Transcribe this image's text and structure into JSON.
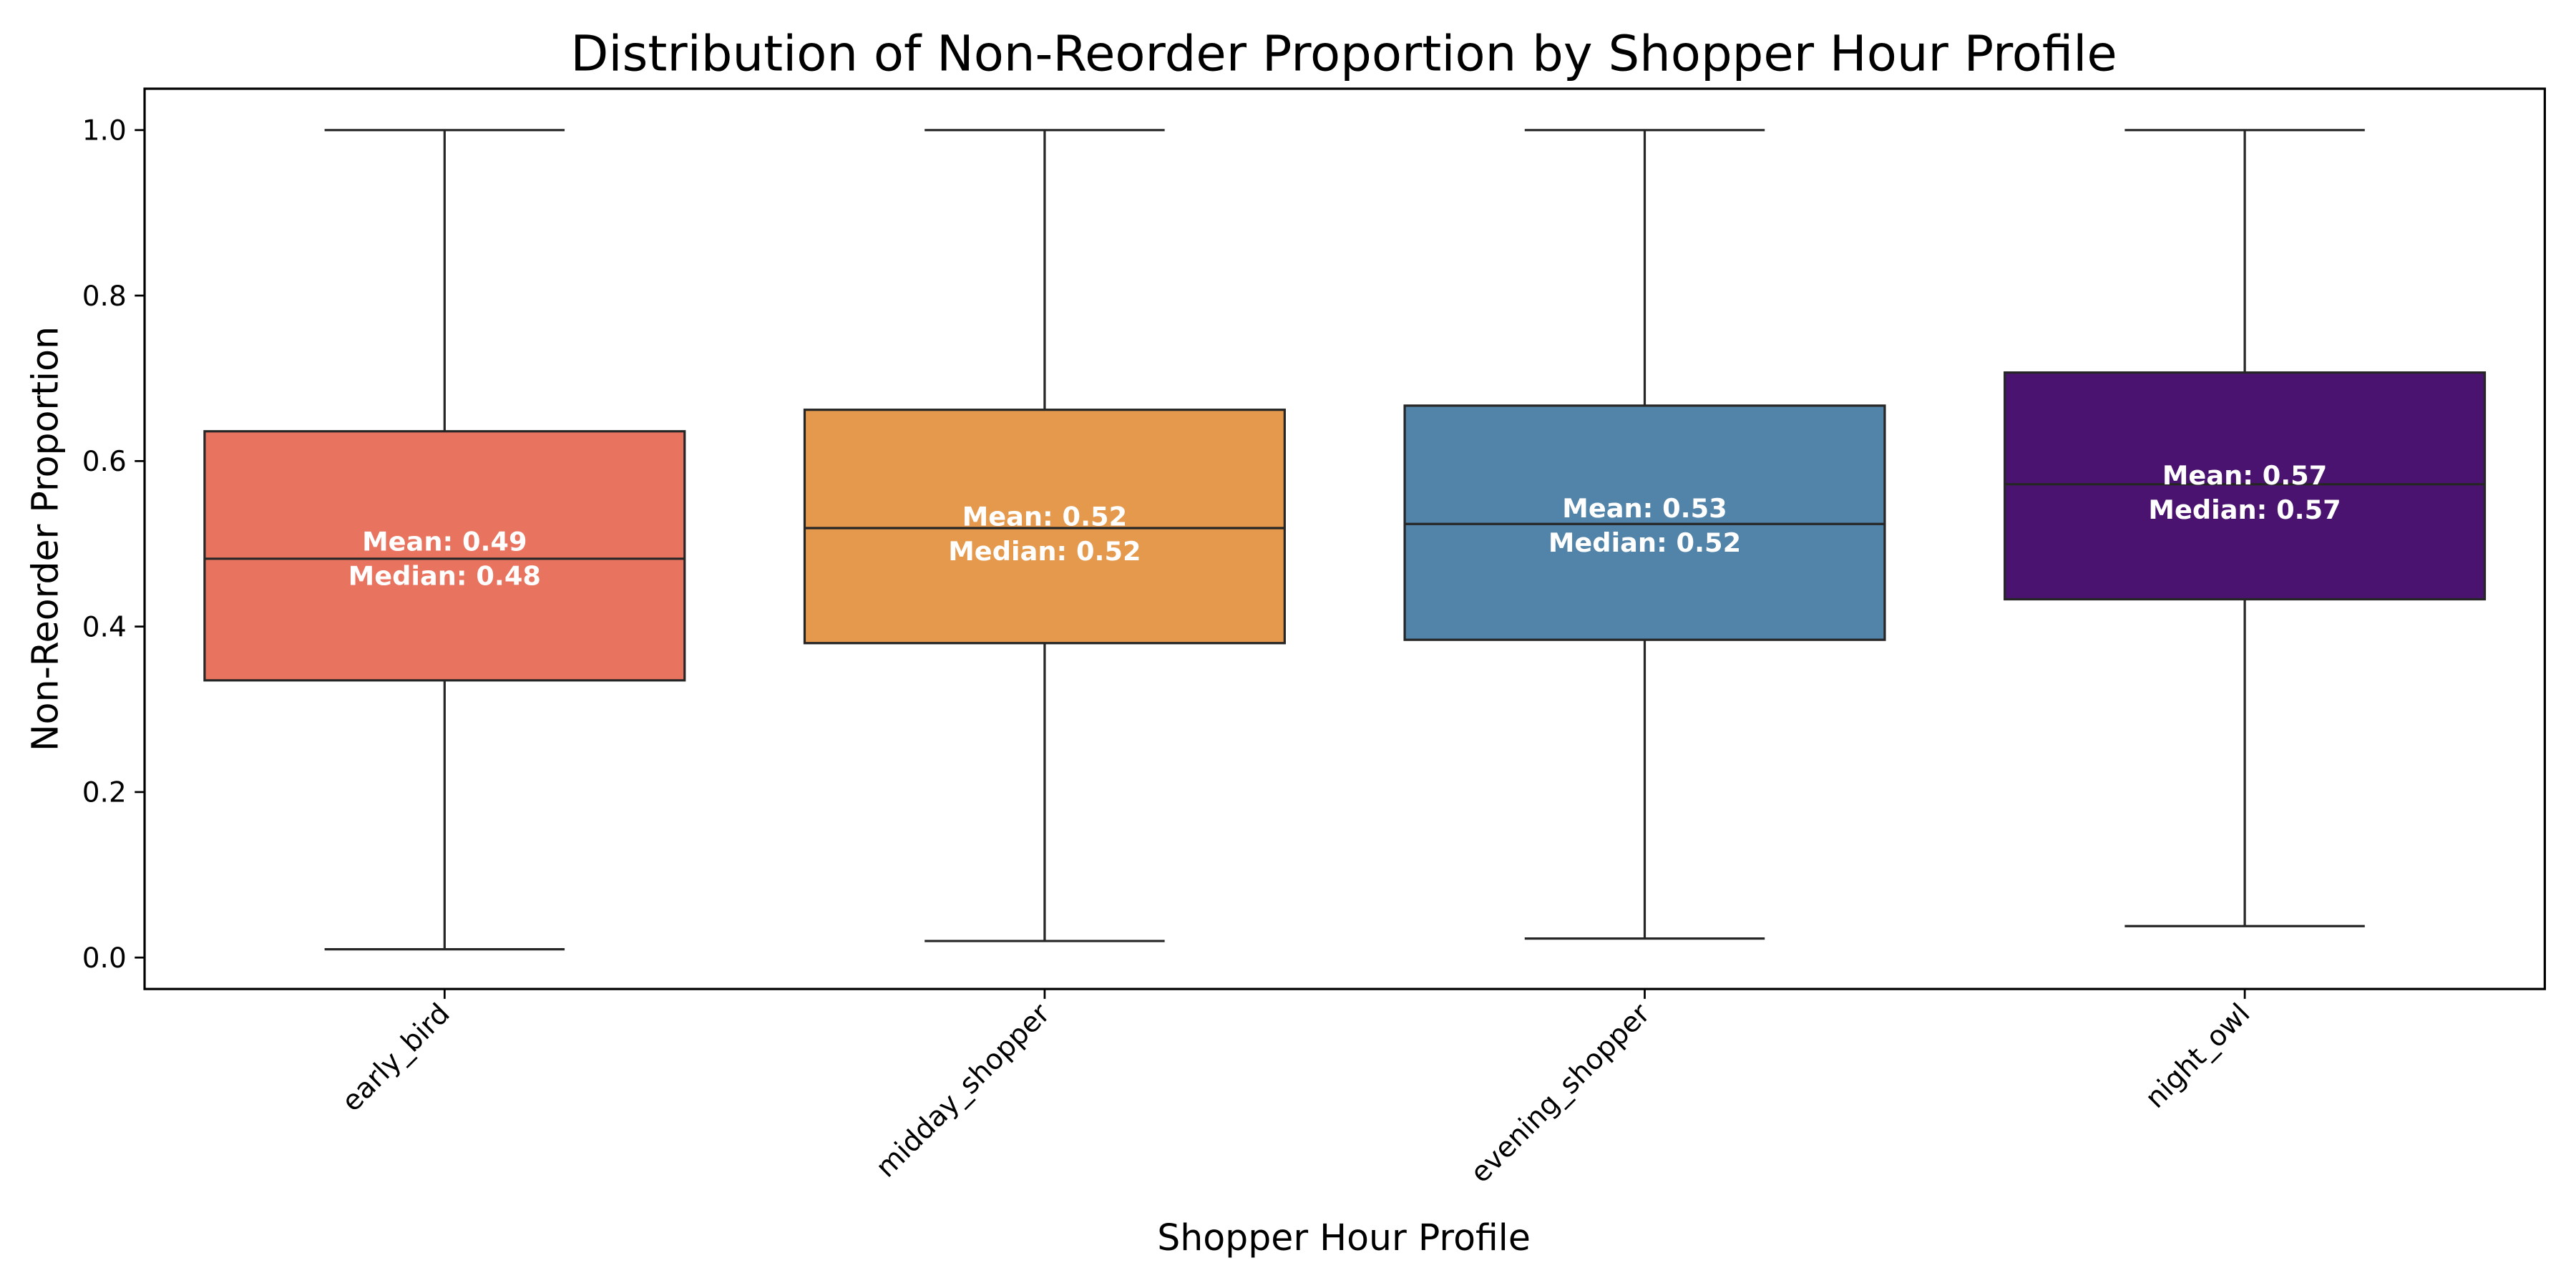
{
  "chart_data": {
    "type": "box",
    "title": "Distribution of Non-Reorder Proportion by Shopper Hour Profile",
    "xlabel": "Shopper Hour Profile",
    "ylabel": "Non-Reorder Proportion",
    "ylim": [
      -0.038,
      1.05
    ],
    "yticks": [
      0.0,
      0.2,
      0.4,
      0.6,
      0.8,
      1.0
    ],
    "ytick_labels": [
      "0.0",
      "0.2",
      "0.4",
      "0.6",
      "0.8",
      "1.0"
    ],
    "grid": false,
    "legend": "none",
    "categories": [
      "early_bird",
      "midday_shopper",
      "evening_shopper",
      "night_owl"
    ],
    "series": [
      {
        "category": "early_bird",
        "color": "#e8735f",
        "whisker_low": 0.01,
        "q1": 0.335,
        "median": 0.482,
        "q3": 0.636,
        "whisker_high": 1.0,
        "mean": 0.49,
        "mean_label": "Mean: 0.49",
        "median_label": "Median: 0.48"
      },
      {
        "category": "midday_shopper",
        "color": "#e5994d",
        "whisker_low": 0.02,
        "q1": 0.38,
        "median": 0.519,
        "q3": 0.662,
        "whisker_high": 1.0,
        "mean": 0.52,
        "mean_label": "Mean: 0.52",
        "median_label": "Median: 0.52"
      },
      {
        "category": "evening_shopper",
        "color": "#5283a8",
        "whisker_low": 0.023,
        "q1": 0.384,
        "median": 0.524,
        "q3": 0.667,
        "whisker_high": 1.0,
        "mean": 0.53,
        "mean_label": "Mean: 0.53",
        "median_label": "Median: 0.52"
      },
      {
        "category": "night_owl",
        "color": "#4a1370",
        "whisker_low": 0.038,
        "q1": 0.433,
        "median": 0.572,
        "q3": 0.707,
        "whisker_high": 1.0,
        "mean": 0.57,
        "mean_label": "Mean: 0.57",
        "median_label": "Median: 0.57"
      }
    ]
  }
}
